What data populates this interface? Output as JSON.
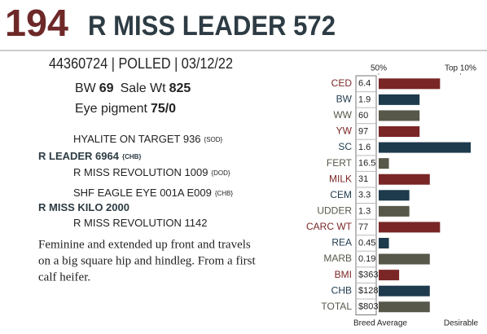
{
  "header": {
    "lot": "194",
    "name": "R MISS LEADER 572"
  },
  "id_line": "44360724 | POLLED | 03/12/22",
  "stats": [
    {
      "label": "BW",
      "value": "69"
    },
    {
      "label": "Sale Wt",
      "value": "825"
    },
    {
      "label": "Eye pigment",
      "value": "75/0"
    }
  ],
  "pedigree": [
    {
      "name": "HYALITE ON TARGET 936",
      "tag": "{SOD}"
    },
    {
      "name": "R LEADER 6964",
      "tag": "{CHB}"
    },
    {
      "name": "R MISS REVOLUTION 1009",
      "tag": "{DOD}"
    },
    {
      "name": "SHF EAGLE EYE 001A E009",
      "tag": "{CHB}"
    },
    {
      "name": "R MISS KILO 2000"
    },
    {
      "name": "R MISS REVOLUTION 1142"
    }
  ],
  "description": [
    "Feminine and extended up front and travels",
    "on a big square hip and hindleg. From a first",
    "calf heifer."
  ],
  "epd_chart": {
    "type": "bar",
    "xlim": [
      50,
      95
    ],
    "xticks": [
      {
        "value": 50,
        "label": "50%"
      },
      {
        "value": 90,
        "label": "Top 10%"
      }
    ],
    "bottom_labels": [
      "Breed Average",
      "Desirable"
    ],
    "rows": [
      {
        "trait": "CED",
        "value": "6.4",
        "bar": 80,
        "color": "#7a2626"
      },
      {
        "trait": "BW",
        "value": "1.9",
        "bar": 70,
        "color": "#1e3a4d"
      },
      {
        "trait": "WW",
        "value": "60",
        "bar": 70,
        "color": "#57574a"
      },
      {
        "trait": "YW",
        "value": "97",
        "bar": 70,
        "color": "#7a2626"
      },
      {
        "trait": "SC",
        "value": "1.6",
        "bar": 95,
        "color": "#1e3a4d"
      },
      {
        "trait": "FERT",
        "value": "16.5",
        "bar": 55,
        "color": "#57574a"
      },
      {
        "trait": "MILK",
        "value": "31",
        "bar": 75,
        "color": "#7a2626"
      },
      {
        "trait": "CEM",
        "value": "3.3",
        "bar": 65,
        "color": "#1e3a4d"
      },
      {
        "trait": "UDDER",
        "value": "1.3",
        "bar": 65,
        "color": "#57574a"
      },
      {
        "trait": "CARC WT",
        "value": "77",
        "bar": 80,
        "color": "#7a2626"
      },
      {
        "trait": "REA",
        "value": "0.45",
        "bar": 55,
        "color": "#1e3a4d"
      },
      {
        "trait": "MARB",
        "value": "0.19",
        "bar": 75,
        "color": "#57574a"
      },
      {
        "trait": "BMI",
        "value": "$363",
        "bar": 60,
        "color": "#7a2626"
      },
      {
        "trait": "CHB",
        "value": "$128",
        "bar": 75,
        "color": "#1e3a4d"
      },
      {
        "trait": "TOTAL",
        "value": "$803",
        "bar": 75,
        "color": "#57574a"
      }
    ]
  }
}
